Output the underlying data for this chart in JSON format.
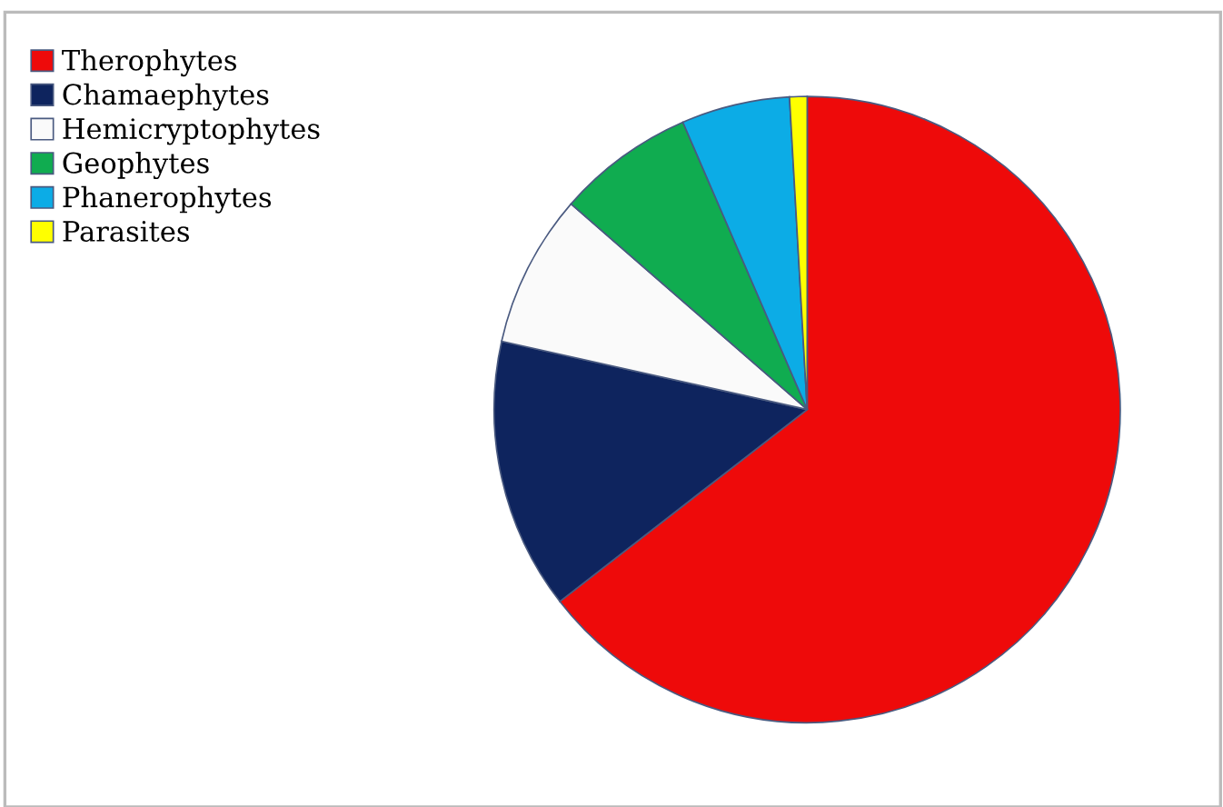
{
  "chart_data": {
    "type": "pie",
    "categories": [
      "Therophytes",
      "Chamaephytes",
      "Hemicryptophytes",
      "Geophytes",
      "Phanerophytes",
      "Parasites"
    ],
    "values": [
      64.5,
      14.0,
      7.9,
      7.1,
      5.6,
      0.9
    ],
    "colors": [
      "#ee0a0a",
      "#0e245e",
      "#fafafa",
      "#10ac50",
      "#0cace6",
      "#ffff00"
    ],
    "legend": "top left"
  }
}
